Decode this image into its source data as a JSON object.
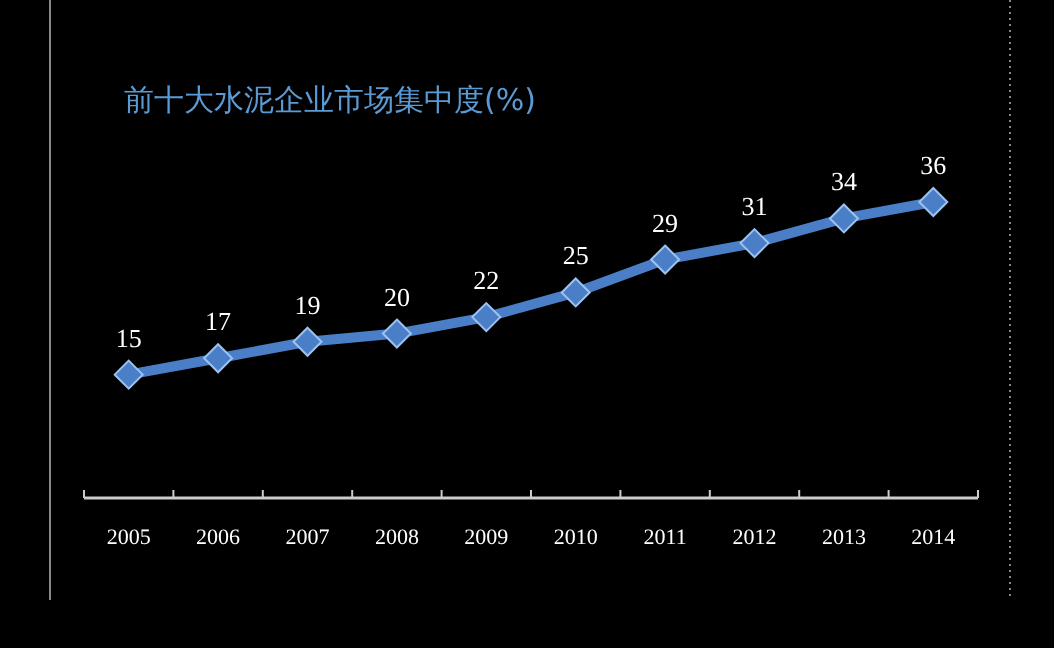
{
  "chart_data": {
    "type": "line",
    "title": "前十大水泥企业市场集中度(%)",
    "categories": [
      "2005",
      "2006",
      "2007",
      "2008",
      "2009",
      "2010",
      "2011",
      "2012",
      "2013",
      "2014"
    ],
    "series": [
      {
        "color": "#4a7fc8",
        "values": [
          15,
          17,
          19,
          20,
          22,
          25,
          29,
          31,
          34,
          36
        ]
      }
    ],
    "data_labels": true,
    "marker": "diamond"
  }
}
